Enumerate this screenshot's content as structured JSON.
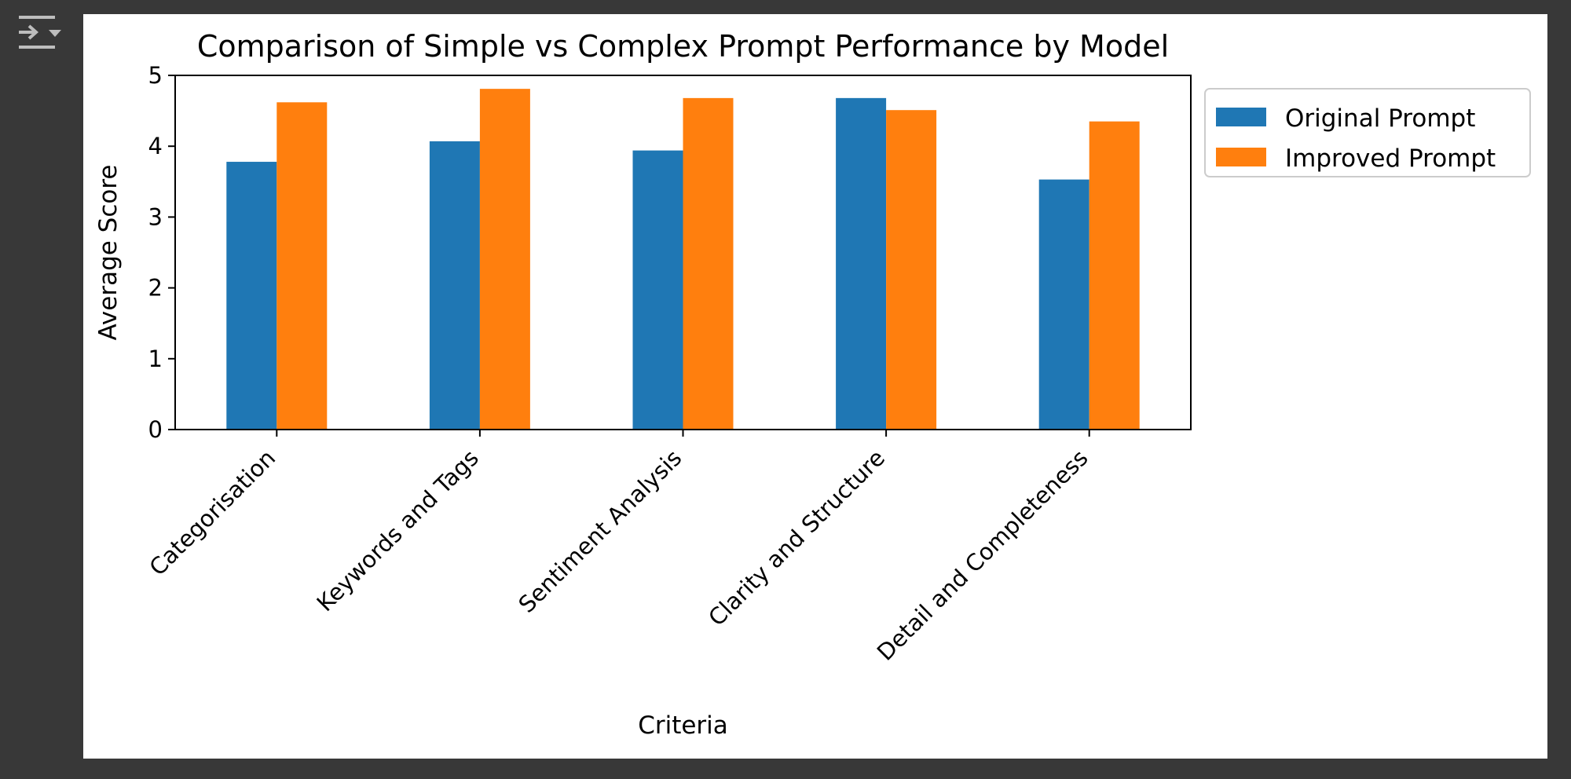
{
  "toolbar": {
    "toggle_icon": "collapse-output-icon"
  },
  "colors": {
    "page_bg": "#383838",
    "series_1": "#1f77b4",
    "series_2": "#ff7f0e"
  },
  "chart_data": {
    "type": "bar",
    "title": "Comparison of Simple vs Complex Prompt Performance by Model",
    "xlabel": "Criteria",
    "ylabel": "Average Score",
    "ylim": [
      0,
      5
    ],
    "yticks": [
      0,
      1,
      2,
      3,
      4,
      5
    ],
    "categories": [
      "Categorisation",
      "Keywords and Tags",
      "Sentiment Analysis",
      "Clarity and Structure",
      "Detail and Completeness"
    ],
    "series": [
      {
        "name": "Original Prompt",
        "color": "#1f77b4",
        "values": [
          3.78,
          4.07,
          3.94,
          4.68,
          3.53
        ]
      },
      {
        "name": "Improved Prompt",
        "color": "#ff7f0e",
        "values": [
          4.62,
          4.81,
          4.68,
          4.51,
          4.35
        ]
      }
    ],
    "legend": "upper right, outside plot",
    "grid": false
  }
}
